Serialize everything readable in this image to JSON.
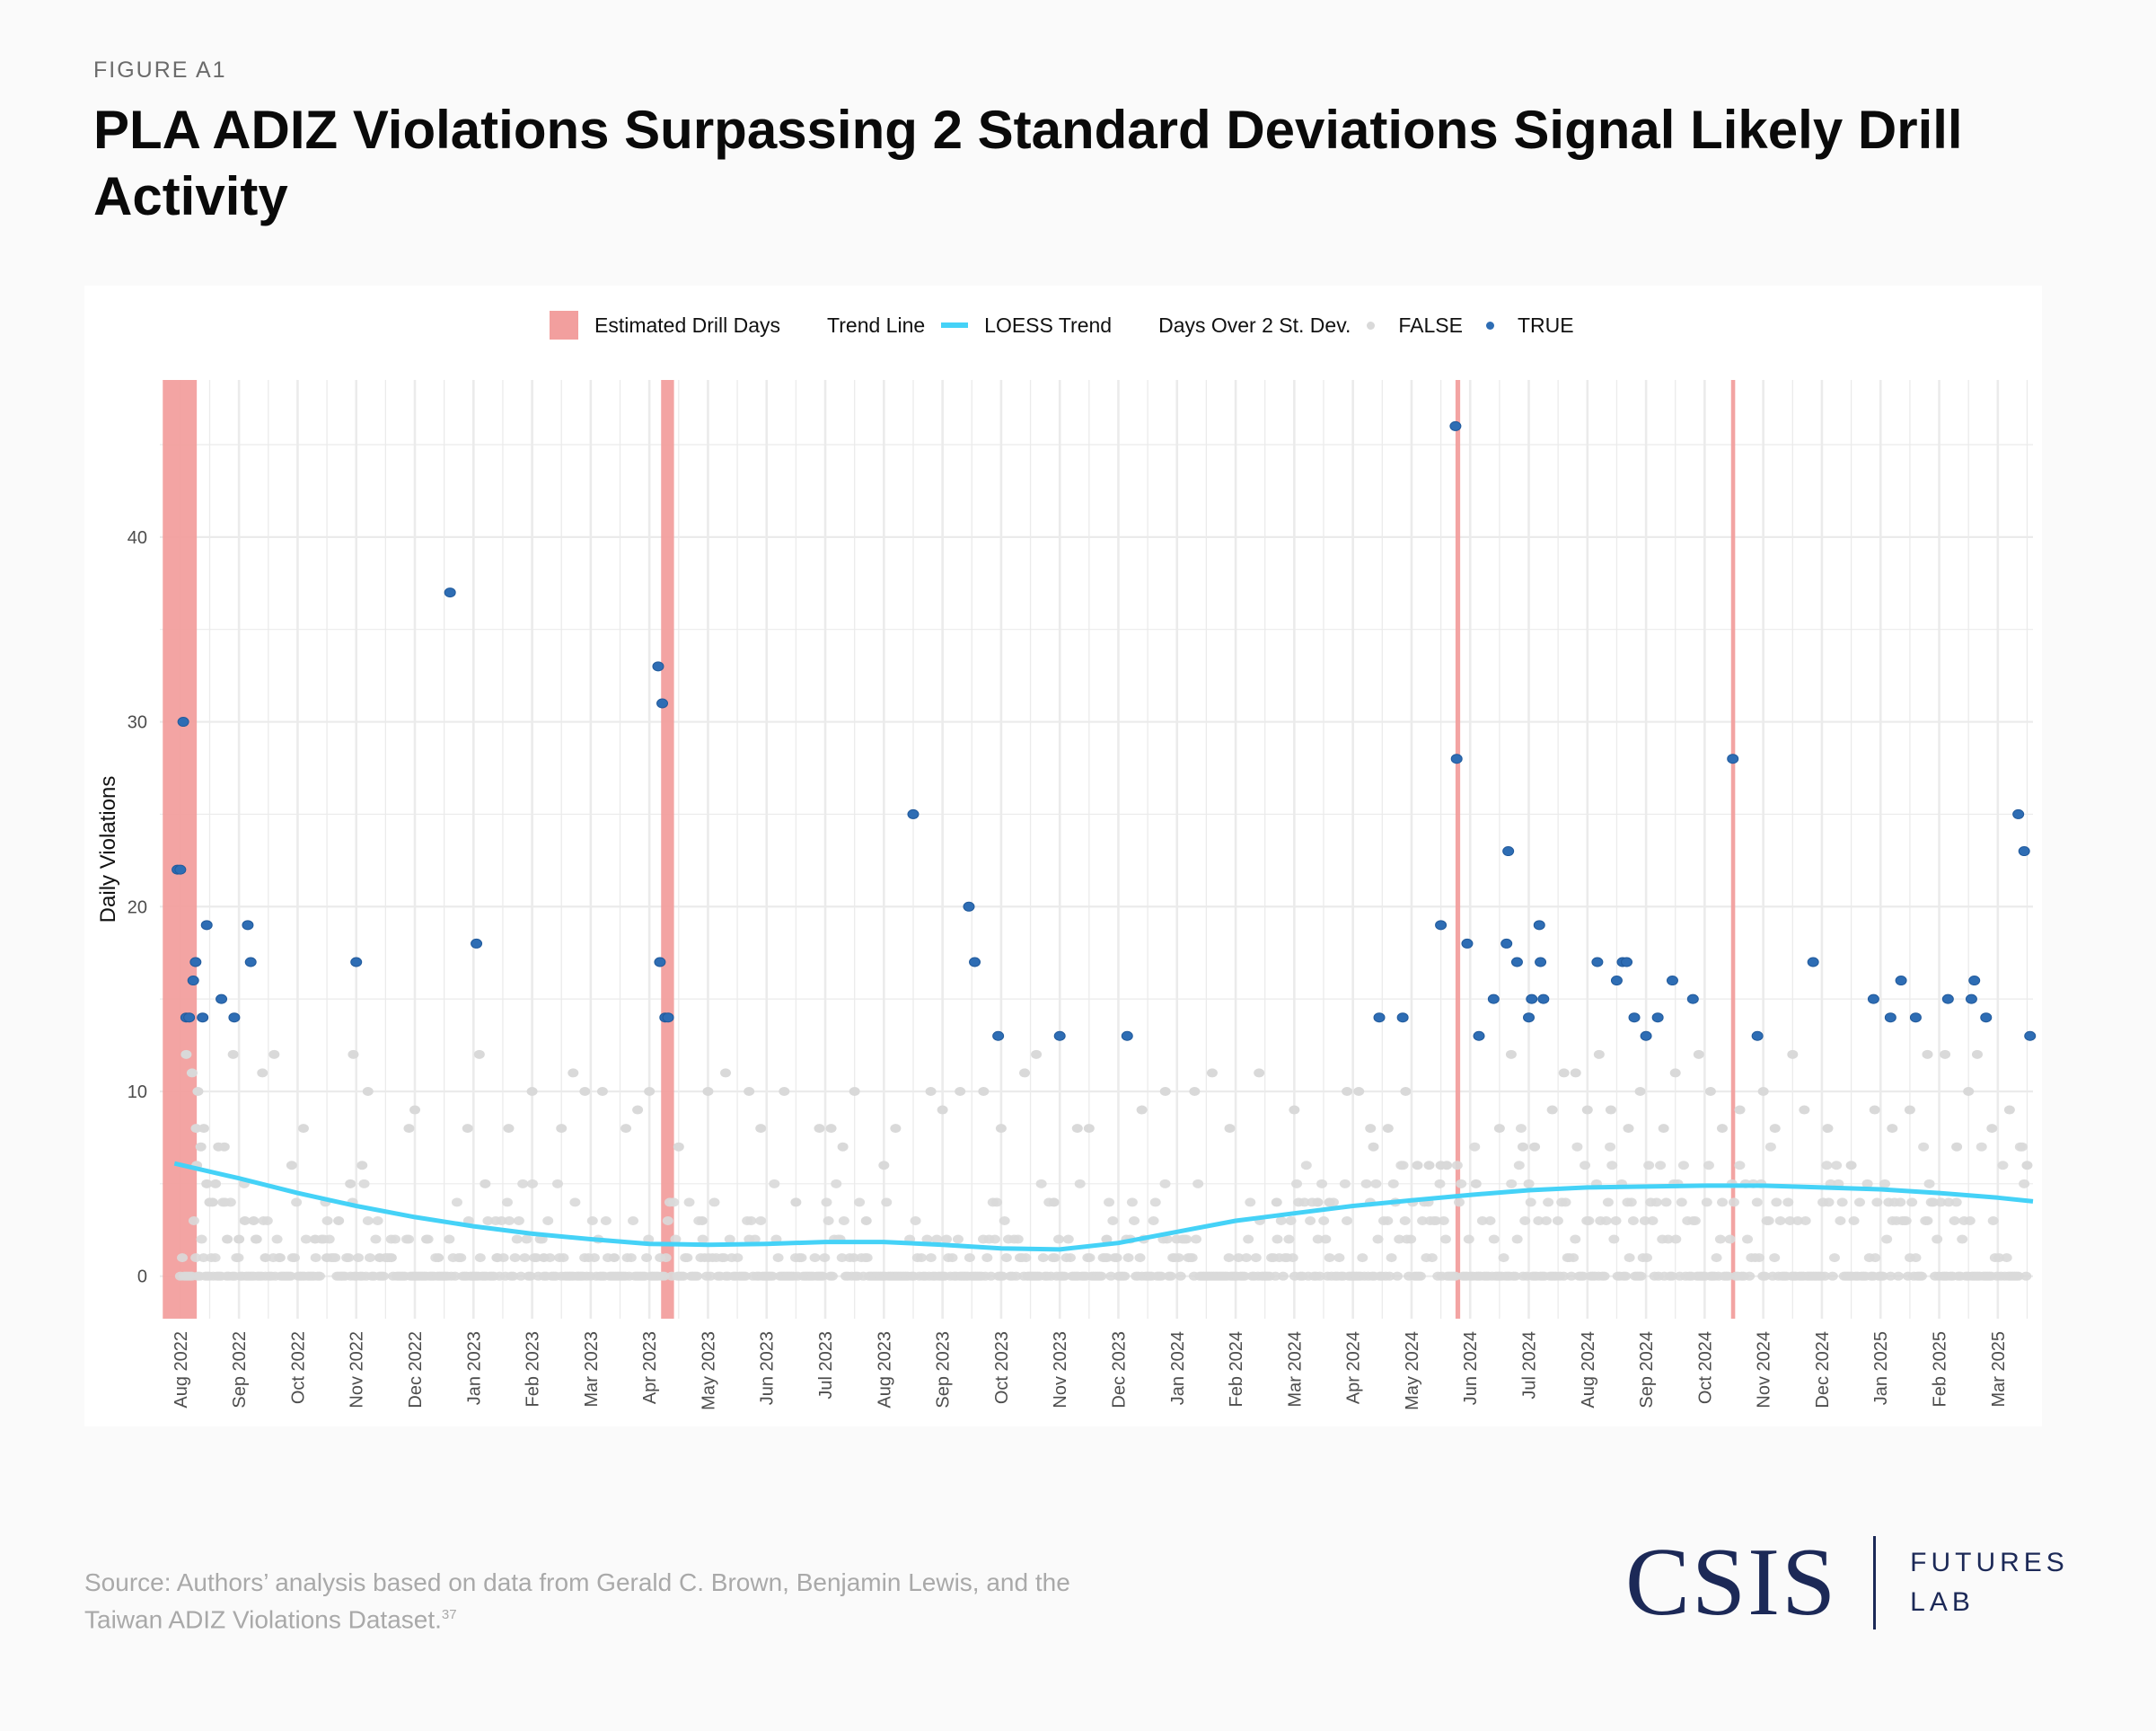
{
  "header": {
    "figure_label": "FIGURE A1",
    "title": "PLA ADIZ Violations Surpassing 2 Standard Deviations Signal Likely Drill Activity"
  },
  "legend": {
    "drill_label": "Estimated Drill Days",
    "trend_section": "Trend Line",
    "trend_label": "LOESS Trend",
    "sd_section": "Days Over 2 St. Dev.",
    "false_label": "FALSE",
    "true_label": "TRUE"
  },
  "footer": {
    "source": "Source: Authors’ analysis based on data from Gerald C. Brown, Benjamin Lewis, and the Taiwan ADIZ Violations Dataset.",
    "footnote": "37",
    "logo_main": "CSIS",
    "logo_line1": "FUTURES",
    "logo_line2": "LAB"
  },
  "colors": {
    "drill": "#f29f9e",
    "trend": "#45d2f7",
    "false_point": "#d9d9d9",
    "true_point": "#2e6db4",
    "grid": "#ebebeb",
    "brand": "#1c2957"
  },
  "chart_data": {
    "type": "scatter",
    "title": "PLA ADIZ Violations Surpassing 2 Standard Deviations Signal Likely Drill Activity",
    "xlabel": "",
    "ylabel": "Daily Violations",
    "x_unit": "months since Aug 2022 (0 = 1 Aug 2022)",
    "xlim": [
      -0.35,
      31.6
    ],
    "ylim": [
      -2.3,
      48.5
    ],
    "y_ticks": [
      0,
      10,
      20,
      30,
      40
    ],
    "x_tick_labels": [
      "Aug 2022",
      "Sep 2022",
      "Oct 2022",
      "Nov 2022",
      "Dec 2022",
      "Jan 2023",
      "Feb 2023",
      "Mar 2023",
      "Apr 2023",
      "May 2023",
      "Jun 2023",
      "Jul 2023",
      "Aug 2023",
      "Sep 2023",
      "Oct 2023",
      "Nov 2023",
      "Dec 2023",
      "Jan 2024",
      "Feb 2024",
      "Mar 2024",
      "Apr 2024",
      "May 2024",
      "Jun 2024",
      "Jul 2024",
      "Aug 2024",
      "Sep 2024",
      "Oct 2024",
      "Nov 2024",
      "Dec 2024",
      "Jan 2025",
      "Feb 2025",
      "Mar 2025"
    ],
    "grid": true,
    "legend_position": "top",
    "drill_periods": [
      {
        "start": -0.3,
        "end": 0.28,
        "label": "Aug 2022"
      },
      {
        "start": 8.2,
        "end": 8.42,
        "label": "Apr 2023"
      },
      {
        "start": 21.75,
        "end": 21.83,
        "label": "May 2024"
      },
      {
        "start": 26.45,
        "end": 26.52,
        "label": "Oct 2024"
      }
    ],
    "loess_trend": {
      "x": [
        -0.1,
        1,
        2,
        3,
        4,
        5,
        6,
        7,
        8,
        9,
        10,
        11,
        12,
        13,
        14,
        15,
        16,
        17,
        18,
        19,
        20,
        21,
        22,
        23,
        24,
        25,
        26,
        27,
        28,
        29,
        30,
        31,
        31.6
      ],
      "y": [
        6.1,
        5.3,
        4.5,
        3.8,
        3.2,
        2.7,
        2.3,
        2.0,
        1.75,
        1.7,
        1.75,
        1.85,
        1.85,
        1.7,
        1.5,
        1.45,
        1.8,
        2.4,
        3.0,
        3.4,
        3.8,
        4.1,
        4.4,
        4.65,
        4.8,
        4.85,
        4.9,
        4.9,
        4.8,
        4.7,
        4.5,
        4.25,
        4.05
      ]
    },
    "series": [
      {
        "name": "TRUE",
        "points": [
          {
            "x": -0.05,
            "y": 22
          },
          {
            "x": 0.0,
            "y": 22
          },
          {
            "x": 0.05,
            "y": 30
          },
          {
            "x": 0.1,
            "y": 14
          },
          {
            "x": 0.15,
            "y": 14
          },
          {
            "x": 0.22,
            "y": 16
          },
          {
            "x": 0.26,
            "y": 17
          },
          {
            "x": 0.38,
            "y": 14
          },
          {
            "x": 0.45,
            "y": 19
          },
          {
            "x": 0.7,
            "y": 15
          },
          {
            "x": 0.92,
            "y": 14
          },
          {
            "x": 1.15,
            "y": 19
          },
          {
            "x": 1.2,
            "y": 17
          },
          {
            "x": 3.0,
            "y": 17
          },
          {
            "x": 4.6,
            "y": 37
          },
          {
            "x": 5.05,
            "y": 18
          },
          {
            "x": 8.15,
            "y": 33
          },
          {
            "x": 8.22,
            "y": 31
          },
          {
            "x": 8.18,
            "y": 17
          },
          {
            "x": 8.27,
            "y": 14
          },
          {
            "x": 8.32,
            "y": 14
          },
          {
            "x": 12.5,
            "y": 25
          },
          {
            "x": 13.45,
            "y": 20
          },
          {
            "x": 13.55,
            "y": 17
          },
          {
            "x": 13.95,
            "y": 13
          },
          {
            "x": 15.0,
            "y": 13
          },
          {
            "x": 16.15,
            "y": 13
          },
          {
            "x": 20.45,
            "y": 14
          },
          {
            "x": 20.85,
            "y": 14
          },
          {
            "x": 21.5,
            "y": 19
          },
          {
            "x": 21.75,
            "y": 46
          },
          {
            "x": 21.77,
            "y": 28
          },
          {
            "x": 21.95,
            "y": 18
          },
          {
            "x": 22.15,
            "y": 13
          },
          {
            "x": 22.4,
            "y": 15
          },
          {
            "x": 22.62,
            "y": 18
          },
          {
            "x": 22.65,
            "y": 23
          },
          {
            "x": 22.8,
            "y": 17
          },
          {
            "x": 23.0,
            "y": 14
          },
          {
            "x": 23.05,
            "y": 15
          },
          {
            "x": 23.18,
            "y": 19
          },
          {
            "x": 23.2,
            "y": 17
          },
          {
            "x": 23.25,
            "y": 15
          },
          {
            "x": 24.17,
            "y": 17
          },
          {
            "x": 24.5,
            "y": 16
          },
          {
            "x": 24.6,
            "y": 17
          },
          {
            "x": 24.67,
            "y": 17
          },
          {
            "x": 24.8,
            "y": 14
          },
          {
            "x": 25.0,
            "y": 13
          },
          {
            "x": 25.2,
            "y": 14
          },
          {
            "x": 25.45,
            "y": 16
          },
          {
            "x": 25.8,
            "y": 15
          },
          {
            "x": 26.48,
            "y": 28
          },
          {
            "x": 26.9,
            "y": 13
          },
          {
            "x": 27.85,
            "y": 17
          },
          {
            "x": 28.88,
            "y": 15
          },
          {
            "x": 29.17,
            "y": 14
          },
          {
            "x": 29.35,
            "y": 16
          },
          {
            "x": 29.6,
            "y": 14
          },
          {
            "x": 30.15,
            "y": 15
          },
          {
            "x": 30.55,
            "y": 15
          },
          {
            "x": 30.6,
            "y": 16
          },
          {
            "x": 30.8,
            "y": 14
          },
          {
            "x": 31.35,
            "y": 25
          },
          {
            "x": 31.45,
            "y": 23
          },
          {
            "x": 31.55,
            "y": 13
          }
        ]
      },
      {
        "name": "FALSE",
        "points": [
          {
            "x": 0.1,
            "y": 12
          },
          {
            "x": 0.2,
            "y": 11
          },
          {
            "x": 0.3,
            "y": 10
          },
          {
            "x": 0.27,
            "y": 8
          },
          {
            "x": 0.35,
            "y": 7
          },
          {
            "x": 0.4,
            "y": 8
          },
          {
            "x": 0.28,
            "y": 6
          },
          {
            "x": 0.45,
            "y": 5
          },
          {
            "x": 0.5,
            "y": 4
          },
          {
            "x": 0.6,
            "y": 5
          },
          {
            "x": 0.65,
            "y": 7
          },
          {
            "x": 0.75,
            "y": 7
          },
          {
            "x": 0.55,
            "y": 4
          },
          {
            "x": 0.8,
            "y": 2
          },
          {
            "x": 0.9,
            "y": 12
          },
          {
            "x": 1.0,
            "y": 2
          },
          {
            "x": 1.1,
            "y": 3
          },
          {
            "x": 1.25,
            "y": 3
          },
          {
            "x": 1.3,
            "y": 2
          },
          {
            "x": 1.4,
            "y": 11
          },
          {
            "x": 1.45,
            "y": 1
          },
          {
            "x": 1.6,
            "y": 12
          },
          {
            "x": 1.7,
            "y": 1
          },
          {
            "x": 1.9,
            "y": 6
          },
          {
            "x": 2.1,
            "y": 8
          },
          {
            "x": 2.3,
            "y": 2
          },
          {
            "x": 2.5,
            "y": 1
          },
          {
            "x": 2.7,
            "y": 3
          },
          {
            "x": 2.9,
            "y": 5
          },
          {
            "x": 2.95,
            "y": 12
          },
          {
            "x": 3.2,
            "y": 10
          },
          {
            "x": 3.1,
            "y": 6
          },
          {
            "x": 3.4,
            "y": 1
          },
          {
            "x": 3.6,
            "y": 1
          },
          {
            "x": 3.9,
            "y": 8
          },
          {
            "x": 4.0,
            "y": 9
          },
          {
            "x": 4.2,
            "y": 2
          },
          {
            "x": 4.4,
            "y": 1
          },
          {
            "x": 4.9,
            "y": 8
          },
          {
            "x": 5.1,
            "y": 12
          },
          {
            "x": 5.2,
            "y": 5
          },
          {
            "x": 5.4,
            "y": 1
          },
          {
            "x": 5.6,
            "y": 8
          },
          {
            "x": 6.0,
            "y": 10
          },
          {
            "x": 6.2,
            "y": 1
          },
          {
            "x": 6.5,
            "y": 8
          },
          {
            "x": 6.7,
            "y": 11
          },
          {
            "x": 6.9,
            "y": 10
          },
          {
            "x": 7.2,
            "y": 10
          },
          {
            "x": 7.4,
            "y": 1
          },
          {
            "x": 7.6,
            "y": 8
          },
          {
            "x": 7.8,
            "y": 9
          },
          {
            "x": 8.0,
            "y": 10
          },
          {
            "x": 8.5,
            "y": 7
          },
          {
            "x": 8.9,
            "y": 3
          },
          {
            "x": 9.0,
            "y": 10
          },
          {
            "x": 9.3,
            "y": 11
          },
          {
            "x": 9.7,
            "y": 10
          },
          {
            "x": 9.9,
            "y": 8
          },
          {
            "x": 10.3,
            "y": 10
          },
          {
            "x": 10.5,
            "y": 4
          },
          {
            "x": 10.9,
            "y": 8
          },
          {
            "x": 11.1,
            "y": 8
          },
          {
            "x": 11.3,
            "y": 7
          },
          {
            "x": 11.5,
            "y": 10
          },
          {
            "x": 11.7,
            "y": 3
          },
          {
            "x": 12.0,
            "y": 6
          },
          {
            "x": 12.2,
            "y": 8
          },
          {
            "x": 12.8,
            "y": 10
          },
          {
            "x": 13.0,
            "y": 9
          },
          {
            "x": 13.3,
            "y": 10
          },
          {
            "x": 13.7,
            "y": 10
          },
          {
            "x": 14.0,
            "y": 8
          },
          {
            "x": 14.4,
            "y": 11
          },
          {
            "x": 14.6,
            "y": 12
          },
          {
            "x": 14.9,
            "y": 4
          },
          {
            "x": 15.3,
            "y": 8
          },
          {
            "x": 15.5,
            "y": 8
          },
          {
            "x": 15.8,
            "y": 2
          },
          {
            "x": 16.4,
            "y": 9
          },
          {
            "x": 16.8,
            "y": 10
          },
          {
            "x": 17.3,
            "y": 10
          },
          {
            "x": 17.6,
            "y": 11
          },
          {
            "x": 17.9,
            "y": 8
          },
          {
            "x": 18.4,
            "y": 11
          },
          {
            "x": 18.7,
            "y": 4
          },
          {
            "x": 19.0,
            "y": 9
          },
          {
            "x": 19.4,
            "y": 4
          },
          {
            "x": 19.6,
            "y": 4
          },
          {
            "x": 19.9,
            "y": 10
          },
          {
            "x": 20.1,
            "y": 10
          },
          {
            "x": 20.3,
            "y": 8
          },
          {
            "x": 20.35,
            "y": 7
          },
          {
            "x": 20.6,
            "y": 8
          },
          {
            "x": 20.9,
            "y": 10
          },
          {
            "x": 21.1,
            "y": 6
          },
          {
            "x": 21.3,
            "y": 6
          },
          {
            "x": 21.5,
            "y": 6
          },
          {
            "x": 21.6,
            "y": 6
          },
          {
            "x": 22.1,
            "y": 5
          },
          {
            "x": 22.5,
            "y": 8
          },
          {
            "x": 22.7,
            "y": 12
          },
          {
            "x": 22.9,
            "y": 7
          },
          {
            "x": 23.1,
            "y": 7
          },
          {
            "x": 23.4,
            "y": 9
          },
          {
            "x": 23.6,
            "y": 11
          },
          {
            "x": 23.8,
            "y": 11
          },
          {
            "x": 24.0,
            "y": 9
          },
          {
            "x": 24.2,
            "y": 12
          },
          {
            "x": 24.4,
            "y": 9
          },
          {
            "x": 24.7,
            "y": 8
          },
          {
            "x": 24.9,
            "y": 10
          },
          {
            "x": 25.3,
            "y": 8
          },
          {
            "x": 25.5,
            "y": 11
          },
          {
            "x": 25.9,
            "y": 12
          },
          {
            "x": 26.1,
            "y": 10
          },
          {
            "x": 26.3,
            "y": 8
          },
          {
            "x": 26.6,
            "y": 9
          },
          {
            "x": 27.0,
            "y": 10
          },
          {
            "x": 27.2,
            "y": 8
          },
          {
            "x": 27.5,
            "y": 12
          },
          {
            "x": 27.7,
            "y": 9
          },
          {
            "x": 28.1,
            "y": 8
          },
          {
            "x": 28.5,
            "y": 6
          },
          {
            "x": 28.9,
            "y": 9
          },
          {
            "x": 29.2,
            "y": 8
          },
          {
            "x": 29.5,
            "y": 9
          },
          {
            "x": 29.8,
            "y": 12
          },
          {
            "x": 30.1,
            "y": 12
          },
          {
            "x": 30.3,
            "y": 7
          },
          {
            "x": 30.5,
            "y": 10
          },
          {
            "x": 30.65,
            "y": 12
          },
          {
            "x": 30.9,
            "y": 8
          },
          {
            "x": 31.2,
            "y": 9
          },
          {
            "x": 31.5,
            "y": 6
          }
        ],
        "note": "Hundreds of additional FALSE days cluster at 0–5 violations across the full range"
      }
    ]
  }
}
